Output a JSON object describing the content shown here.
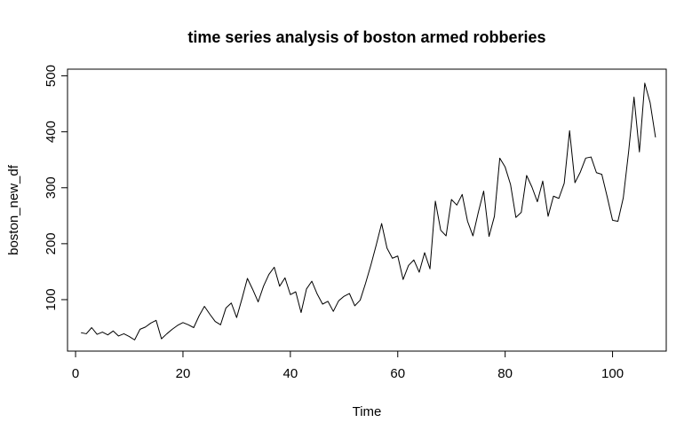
{
  "chart_data": {
    "type": "line",
    "title": "time series analysis of boston armed robberies",
    "xlabel": "Time",
    "ylabel": "boston_new_df",
    "xlim": [
      -1.5,
      110
    ],
    "ylim": [
      8,
      512
    ],
    "xticks": [
      0,
      20,
      40,
      60,
      80,
      100
    ],
    "yticks": [
      100,
      200,
      300,
      400,
      500
    ],
    "grid": false,
    "legend": "none",
    "line_color": "#000000",
    "x": [
      1,
      2,
      3,
      4,
      5,
      6,
      7,
      8,
      9,
      10,
      11,
      12,
      13,
      14,
      15,
      16,
      17,
      18,
      19,
      20,
      21,
      22,
      23,
      24,
      25,
      26,
      27,
      28,
      29,
      30,
      31,
      32,
      33,
      34,
      35,
      36,
      37,
      38,
      39,
      40,
      41,
      42,
      43,
      44,
      45,
      46,
      47,
      48,
      49,
      50,
      51,
      52,
      53,
      54,
      55,
      56,
      57,
      58,
      59,
      60,
      61,
      62,
      63,
      64,
      65,
      66,
      67,
      68,
      69,
      70,
      71,
      72,
      73,
      74,
      75,
      76,
      77,
      78,
      79,
      80,
      81,
      82,
      83,
      84,
      85,
      86,
      87,
      88,
      89,
      90,
      91,
      92,
      93,
      94,
      95,
      96,
      97,
      98,
      99,
      100,
      101,
      102,
      103,
      104,
      105,
      106,
      107,
      108
    ],
    "y": [
      41,
      39,
      50,
      38,
      42,
      37,
      44,
      35,
      39,
      34,
      28,
      47,
      51,
      58,
      63,
      30,
      39,
      47,
      54,
      59,
      55,
      50,
      71,
      88,
      74,
      61,
      55,
      85,
      94,
      68,
      102,
      138,
      118,
      96,
      124,
      145,
      158,
      124,
      139,
      109,
      114,
      77,
      119,
      133,
      110,
      92,
      97,
      79,
      98,
      106,
      111,
      89,
      99,
      129,
      162,
      198,
      236,
      192,
      174,
      178,
      136,
      161,
      171,
      149,
      184,
      155,
      276,
      224,
      214,
      279,
      269,
      288,
      240,
      214,
      256,
      294,
      213,
      249,
      353,
      337,
      306,
      247,
      256,
      322,
      301,
      275,
      312,
      249,
      285,
      281,
      308,
      402,
      309,
      328,
      353,
      355,
      327,
      324,
      284,
      242,
      240,
      282,
      365,
      462,
      364,
      487,
      452,
      390
    ]
  }
}
